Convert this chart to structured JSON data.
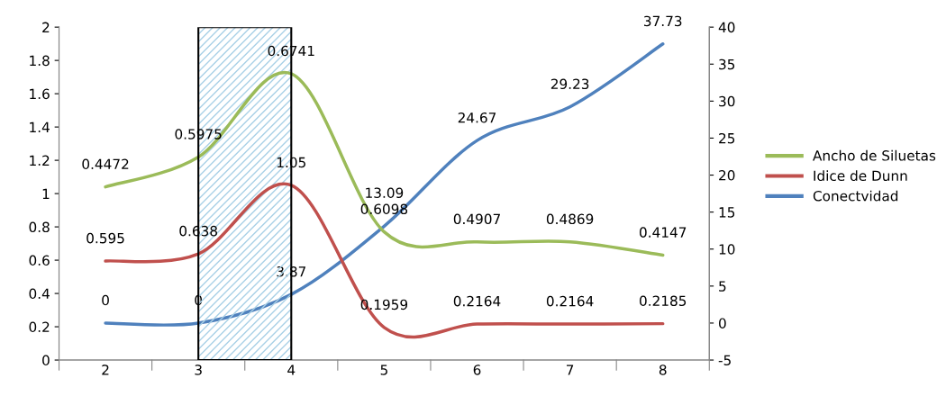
{
  "chart_data": {
    "type": "line",
    "categories": [
      "2",
      "3",
      "4",
      "5",
      "6",
      "7",
      "8"
    ],
    "series": [
      {
        "name": "Ancho de Siluetas",
        "color": "#9bbb59",
        "values": [
          1.04,
          1.22,
          1.72,
          0.77,
          0.71,
          0.71,
          0.63
        ]
      },
      {
        "name": "Idice de Dunn",
        "color": "#c0504d",
        "values": [
          0.595,
          0.638,
          1.05,
          0.1959,
          0.2164,
          0.2164,
          0.2185
        ],
        "value_labels": [
          "0.595",
          "0.638",
          "1.05",
          "0.1959",
          "0.2164",
          "0.2164",
          "0.2185"
        ]
      },
      {
        "name": "Conectvidad",
        "color": "#4f81bd",
        "axis": "y2",
        "values": [
          0,
          0,
          3.87,
          13.09,
          24.67,
          29.23,
          37.73
        ],
        "value_labels": [
          "0",
          "0",
          "3.87",
          "13.09",
          "24.67",
          "29.23",
          "37.73"
        ]
      }
    ],
    "ylim": [
      0,
      2
    ],
    "yticks": [
      0,
      0.2,
      0.4,
      0.6,
      0.8,
      1,
      1.2,
      1.4,
      1.6,
      1.8,
      2
    ],
    "y2lim": [
      -5,
      40
    ],
    "y2ticks": [
      -5,
      0,
      5,
      10,
      15,
      20,
      25,
      30,
      35,
      40
    ],
    "bands": [
      {
        "axis": "x",
        "from": "3",
        "to": "4",
        "color": "#a8d0e6"
      }
    ],
    "annotations": [
      {
        "text": "0.4472",
        "x": "2",
        "y": 1.04
      },
      {
        "text": "0.5975",
        "x": "3",
        "y": 1.22
      },
      {
        "text": "0.6741",
        "x": "4",
        "y": 1.72
      },
      {
        "text": "0.6098",
        "x": "5",
        "y": 0.77
      },
      {
        "text": "0.4907",
        "x": "6",
        "y": 0.71
      },
      {
        "text": "0.4869",
        "x": "7",
        "y": 0.71
      },
      {
        "text": "0.4147",
        "x": "8",
        "y": 0.63
      }
    ],
    "legend": "right",
    "grid": false,
    "marker": "none",
    "line_style": "solid"
  }
}
